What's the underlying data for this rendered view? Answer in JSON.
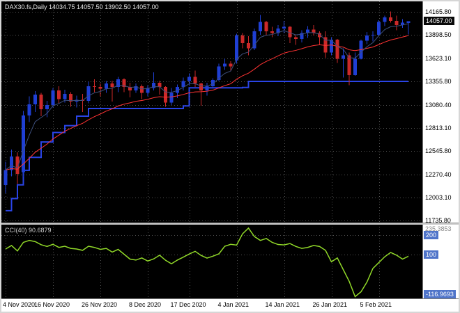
{
  "window": {
    "title": "DAX30.fs,Daily 14034.75 14057.50 13902.50 14057.00"
  },
  "colors": {
    "background": "#000000",
    "bull": "#1f3fd4",
    "bear": "#cc2929",
    "ma_fast": "#3d4f7c",
    "ma_slow": "#ff3333",
    "step_line": "#2a44e6",
    "cci_line": "#90d828",
    "grid": "#525252",
    "axis_bg": "#ffffff",
    "axis_text": "#000000",
    "badge_bg": "#4f74c9",
    "price_badge_bg": "#0a0a0a"
  },
  "chart_data": {
    "type": "candlestick",
    "symbol": "DAX30.fs",
    "timeframe": "Daily",
    "ohlc_display": {
      "open": "14034.75",
      "high": "14057.50",
      "low": "13902.50",
      "close": "14057.00"
    },
    "price_range": [
      11711,
      14287
    ],
    "price_axis_labels": [
      "14165.80",
      "13898.50",
      "13623.10",
      "13355.80",
      "13080.40",
      "12813.10",
      "12545.80",
      "12270.40",
      "12003.10",
      "11735.80"
    ],
    "current_price_label": "14057.00",
    "time_axis_labels": [
      {
        "i": 0,
        "label": "4 Nov 2020"
      },
      {
        "i": 8,
        "label": "16 Nov 2020"
      },
      {
        "i": 16,
        "label": "26 Nov 2020"
      },
      {
        "i": 24,
        "label": "8 Dec 2020"
      },
      {
        "i": 31,
        "label": "17 Dec 2020"
      },
      {
        "i": 39,
        "label": "4 Jan 2021"
      },
      {
        "i": 47,
        "label": "14 Jan 2021"
      },
      {
        "i": 55,
        "label": "26 Jan 2021"
      },
      {
        "i": 63,
        "label": "5 Feb 2021"
      }
    ],
    "ma_fast_period": 5,
    "ma_slow_period": 20,
    "candles": [
      [
        12150,
        12420,
        12050,
        12324
      ],
      [
        12324,
        12560,
        12250,
        12480
      ],
      [
        12480,
        12530,
        12160,
        12280
      ],
      [
        12300,
        13010,
        12240,
        12960
      ],
      [
        12960,
        13180,
        12880,
        13090
      ],
      [
        13090,
        13240,
        13000,
        13200
      ],
      [
        13200,
        13220,
        12950,
        13030
      ],
      [
        13030,
        13130,
        12940,
        13080
      ],
      [
        13080,
        13280,
        13050,
        13250
      ],
      [
        13250,
        13300,
        13100,
        13150
      ],
      [
        13150,
        13260,
        13110,
        13210
      ],
      [
        13210,
        13230,
        13060,
        13120
      ],
      [
        13120,
        13190,
        13050,
        13140
      ],
      [
        13140,
        13210,
        13000,
        13130
      ],
      [
        13130,
        13350,
        13100,
        13300
      ],
      [
        13300,
        13380,
        13230,
        13290
      ],
      [
        13290,
        13330,
        13180,
        13270
      ],
      [
        13270,
        13360,
        13220,
        13330
      ],
      [
        13330,
        13365,
        13120,
        13290
      ],
      [
        13290,
        13410,
        13230,
        13380
      ],
      [
        13380,
        13390,
        13230,
        13290
      ],
      [
        13290,
        13340,
        13170,
        13250
      ],
      [
        13250,
        13330,
        13220,
        13300
      ],
      [
        13300,
        13320,
        13150,
        13220
      ],
      [
        13220,
        13310,
        13180,
        13280
      ],
      [
        13280,
        13460,
        13250,
        13340
      ],
      [
        13340,
        13365,
        13200,
        13290
      ],
      [
        13290,
        13300,
        13060,
        13110
      ],
      [
        13110,
        13280,
        13080,
        13220
      ],
      [
        13220,
        13320,
        13160,
        13290
      ],
      [
        13290,
        13400,
        13250,
        13360
      ],
      [
        13360,
        13450,
        13310,
        13410
      ],
      [
        13410,
        13480,
        13290,
        13330
      ],
      [
        13330,
        13340,
        13070,
        13250
      ],
      [
        13250,
        13340,
        13190,
        13300
      ],
      [
        13300,
        13390,
        13280,
        13370
      ],
      [
        13370,
        13560,
        13360,
        13530
      ],
      [
        13530,
        13620,
        13490,
        13560
      ],
      [
        13560,
        13590,
        13480,
        13530
      ],
      [
        13600,
        13910,
        13560,
        13890
      ],
      [
        13890,
        13920,
        13740,
        13800
      ],
      [
        13800,
        13880,
        13660,
        13740
      ],
      [
        13740,
        13970,
        13720,
        13940
      ],
      [
        13940,
        14130,
        13900,
        14050
      ],
      [
        14050,
        14060,
        13890,
        13940
      ],
      [
        13940,
        13990,
        13870,
        13920
      ],
      [
        13920,
        14010,
        13880,
        13970
      ],
      [
        13970,
        14060,
        13920,
        13990
      ],
      [
        13990,
        14000,
        13800,
        13870
      ],
      [
        13870,
        13900,
        13780,
        13850
      ],
      [
        13850,
        13950,
        13810,
        13920
      ],
      [
        13920,
        14000,
        13860,
        13960
      ],
      [
        13960,
        14010,
        13890,
        13920
      ],
      [
        13920,
        13940,
        13780,
        13870
      ],
      [
        13870,
        13940,
        13630,
        13690
      ],
      [
        13690,
        13870,
        13660,
        13840
      ],
      [
        13840,
        13850,
        13570,
        13620
      ],
      [
        13620,
        13740,
        13400,
        13660
      ],
      [
        13660,
        13690,
        13310,
        13430
      ],
      [
        13430,
        13690,
        13420,
        13620
      ],
      [
        13620,
        13840,
        13610,
        13830
      ],
      [
        13830,
        13930,
        13790,
        13890
      ],
      [
        13890,
        13940,
        13820,
        13900
      ],
      [
        13900,
        14070,
        13880,
        14050
      ],
      [
        14050,
        14120,
        14000,
        14100
      ],
      [
        14100,
        14170,
        14040,
        14060
      ],
      [
        14060,
        14120,
        13950,
        14010
      ],
      [
        14010,
        14080,
        13980,
        14040
      ],
      [
        14034.75,
        14057.5,
        13902.5,
        14057.0
      ]
    ],
    "step_line": [
      [
        0,
        11850
      ],
      [
        1,
        11990
      ],
      [
        2,
        12150
      ],
      [
        3,
        12320
      ],
      [
        4,
        12470
      ],
      [
        6,
        12650
      ],
      [
        8,
        12760
      ],
      [
        10,
        12840
      ],
      [
        12,
        12950
      ],
      [
        14,
        13040
      ],
      [
        30,
        13070
      ],
      [
        31,
        13280
      ],
      [
        40,
        13285
      ],
      [
        41,
        13355
      ],
      [
        68,
        13355
      ]
    ],
    "cci": {
      "label": "CCI(40) 90.6879",
      "period": 40,
      "current": 90.6879,
      "levels": [
        200,
        100
      ],
      "max_label": "235.3853",
      "min_label": "-116.9693",
      "range": [
        -126,
        253
      ],
      "values": [
        128,
        146,
        118,
        162,
        172,
        166,
        150,
        141,
        152,
        136,
        142,
        131,
        128,
        121,
        142,
        136,
        126,
        131,
        112,
        126,
        101,
        76,
        71,
        82,
        66,
        77,
        96,
        70,
        52,
        71,
        86,
        102,
        116,
        95,
        81,
        91,
        103,
        142,
        152,
        148,
        206,
        235.3853,
        192,
        172,
        182,
        162,
        151,
        149,
        156,
        141,
        131,
        136,
        146,
        141,
        121,
        62,
        82,
        22,
        -38,
        -116.9693,
        -92,
        -42,
        28,
        58,
        88,
        110,
        96,
        76,
        90.6879
      ]
    }
  }
}
